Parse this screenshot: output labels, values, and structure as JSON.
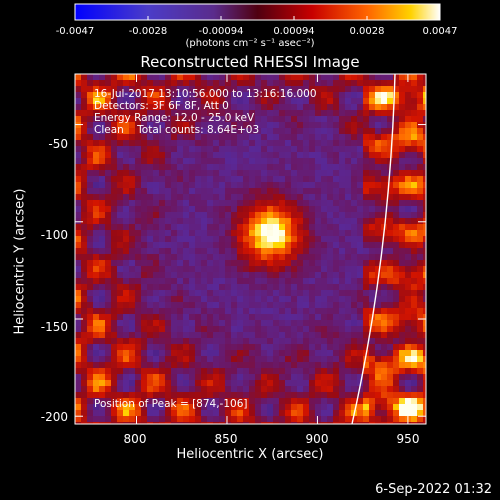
{
  "colorbar": {
    "ticks": [
      "-0.0047",
      "-0.0028",
      "-0.00094",
      "0.00094",
      "0.0028",
      "0.0047"
    ],
    "units": "(photons cm⁻² s⁻¹ asec⁻²)"
  },
  "chart_data": {
    "type": "heatmap",
    "title": "Reconstructed RHESSI Image",
    "xlabel": "Heliocentric X (arcsec)",
    "ylabel": "Heliocentric Y (arcsec)",
    "xlim": [
      766,
      960
    ],
    "ylim": [
      -204,
      -24
    ],
    "xticks": [
      "800",
      "850",
      "900",
      "950"
    ],
    "yticks": [
      "-50",
      "-100",
      "-150",
      "-200"
    ],
    "clim": [
      -0.0047,
      0.0047
    ],
    "peak": {
      "x": 874,
      "y": -106
    },
    "limb": "white arc, lower-right"
  },
  "annotations": {
    "time_range": "16-Jul-2017 13:10:56.000 to 13:16:16.000",
    "detectors": "Detectors: 3F 6F 8F, Att 0",
    "energy": "Energy Range: 12.0 - 25.0 keV",
    "method": "Clean    Total counts: 8.64E+03",
    "peak_label": "Position of Peak = [874,-106]"
  },
  "footer": {
    "date": "6-Sep-2022 01:32"
  }
}
